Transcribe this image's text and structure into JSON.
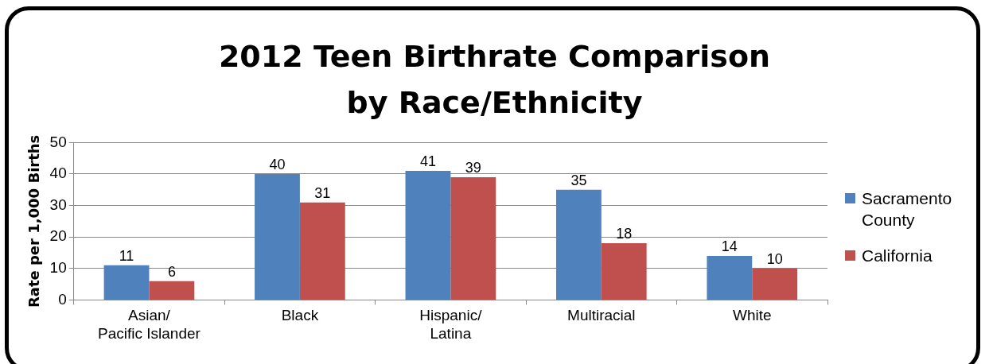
{
  "chart_data": {
    "type": "bar",
    "title": "2012 Teen Birthrate Comparison\nby Race/Ethnicity",
    "ylabel": "Rate per 1,000 Births",
    "categories": [
      "Asian/Pacific Islander",
      "Black",
      "Hispanic/Latina",
      "Multiracial",
      "White"
    ],
    "series": [
      {
        "name": "Sacramento County",
        "color": "#4f81bd",
        "values": [
          11,
          40,
          41,
          35,
          14
        ]
      },
      {
        "name": "California",
        "color": "#c0504d",
        "values": [
          6,
          31,
          39,
          18,
          10
        ]
      }
    ],
    "ylim": [
      0,
      50
    ],
    "yticks": [
      0,
      10,
      20,
      30,
      40,
      50
    ],
    "grid": "y",
    "legend": "right",
    "data_labels": true
  }
}
